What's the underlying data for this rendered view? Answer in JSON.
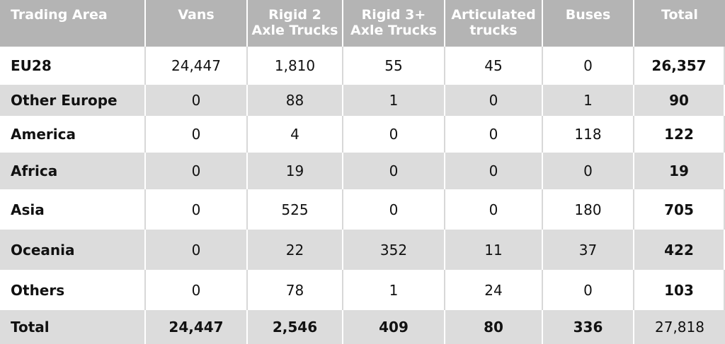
{
  "table": {
    "headers": [
      "Trading Area",
      "Vans",
      "Rigid 2\nAxle Trucks",
      "Rigid 3+\nAxle Trucks",
      "Articulated\ntrucks",
      "Buses",
      "Total"
    ],
    "rows": [
      {
        "area": "EU28",
        "vans": "24,447",
        "rigid2": "1,810",
        "rigid3": "55",
        "artic": "45",
        "buses": "0",
        "total": "26,357"
      },
      {
        "area": "Other Europe",
        "vans": "0",
        "rigid2": "88",
        "rigid3": "1",
        "artic": "0",
        "buses": "1",
        "total": "90"
      },
      {
        "area": "America",
        "vans": "0",
        "rigid2": "4",
        "rigid3": "0",
        "artic": "0",
        "buses": "118",
        "total": "122"
      },
      {
        "area": "Africa",
        "vans": "0",
        "rigid2": "19",
        "rigid3": "0",
        "artic": "0",
        "buses": "0",
        "total": "19"
      },
      {
        "area": "Asia",
        "vans": "0",
        "rigid2": "525",
        "rigid3": "0",
        "artic": "0",
        "buses": "180",
        "total": "705"
      },
      {
        "area": "Oceania",
        "vans": "0",
        "rigid2": "22",
        "rigid3": "352",
        "artic": "11",
        "buses": "37",
        "total": "422"
      },
      {
        "area": "Others",
        "vans": "0",
        "rigid2": "78",
        "rigid3": "1",
        "artic": "24",
        "buses": "0",
        "total": "103"
      }
    ],
    "totals": {
      "area": "Total",
      "vans": "24,447",
      "rigid2": "2,546",
      "rigid3": "409",
      "artic": "80",
      "buses": "336",
      "total": "27,818"
    }
  },
  "colors": {
    "header_bg": "#b4b4b4",
    "header_text": "#ffffff",
    "stripe_bg": "#dcdcdc",
    "row_bg": "#ffffff"
  }
}
